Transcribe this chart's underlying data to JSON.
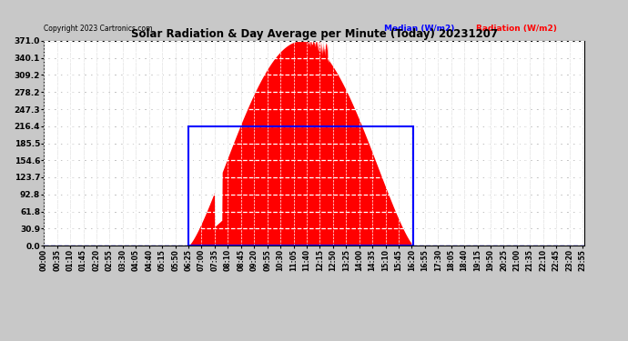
{
  "title": "Solar Radiation & Day Average per Minute (Today) 20231207",
  "copyright": "Copyright 2023 Cartronics.com",
  "legend_median": "Median (W/m2)",
  "legend_radiation": "Radiation (W/m2)",
  "yticks": [
    0.0,
    30.9,
    61.8,
    92.8,
    123.7,
    154.6,
    185.5,
    216.4,
    247.3,
    278.2,
    309.2,
    340.1,
    371.0
  ],
  "ymax": 371.0,
  "ymin": 0.0,
  "bg_color": "#c8c8c8",
  "plot_bg_color": "#ffffff",
  "fill_color": "#ff0000",
  "median_line_color": "#0000ff",
  "median_value": 216.4,
  "grid_color": "#ffffff",
  "dashed_grid_color": "#aaaaaa",
  "sunrise_min": 385,
  "sunset_min": 985,
  "peak_min": 745
}
